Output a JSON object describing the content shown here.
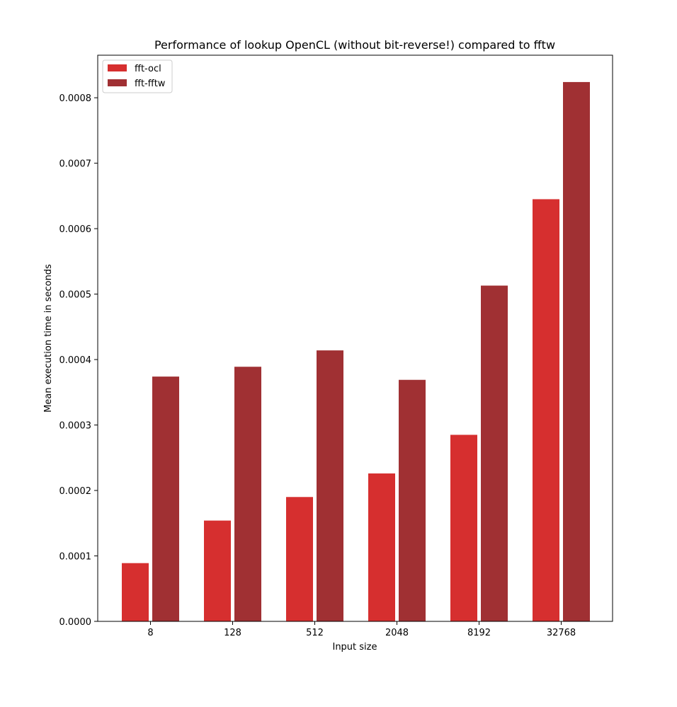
{
  "chart_data": {
    "type": "bar",
    "title": "Performance of lookup OpenCL (without bit-reverse!) compared to fftw",
    "xlabel": "Input size",
    "ylabel": "Mean execution time in seconds",
    "categories": [
      "8",
      "128",
      "512",
      "2048",
      "8192",
      "32768"
    ],
    "series": [
      {
        "name": "fft-ocl",
        "color": "#d62f2f",
        "values": [
          8.9e-05,
          0.000154,
          0.00019,
          0.000226,
          0.000285,
          0.000645
        ]
      },
      {
        "name": "fft-fftw",
        "color": "#a03033",
        "values": [
          0.000374,
          0.000389,
          0.000414,
          0.000369,
          0.000513,
          0.000824
        ]
      }
    ],
    "ylim": [
      0,
      0.000865
    ],
    "yticks": [
      {
        "value": 0,
        "label": "0.0000"
      },
      {
        "value": 0.0001,
        "label": "0.0001"
      },
      {
        "value": 0.0002,
        "label": "0.0002"
      },
      {
        "value": 0.0003,
        "label": "0.0003"
      },
      {
        "value": 0.0004,
        "label": "0.0004"
      },
      {
        "value": 0.0005,
        "label": "0.0005"
      },
      {
        "value": 0.0006,
        "label": "0.0006"
      },
      {
        "value": 0.0007,
        "label": "0.0007"
      },
      {
        "value": 0.0008,
        "label": "0.0008"
      }
    ],
    "legend_position": "top-left",
    "grid": false
  }
}
